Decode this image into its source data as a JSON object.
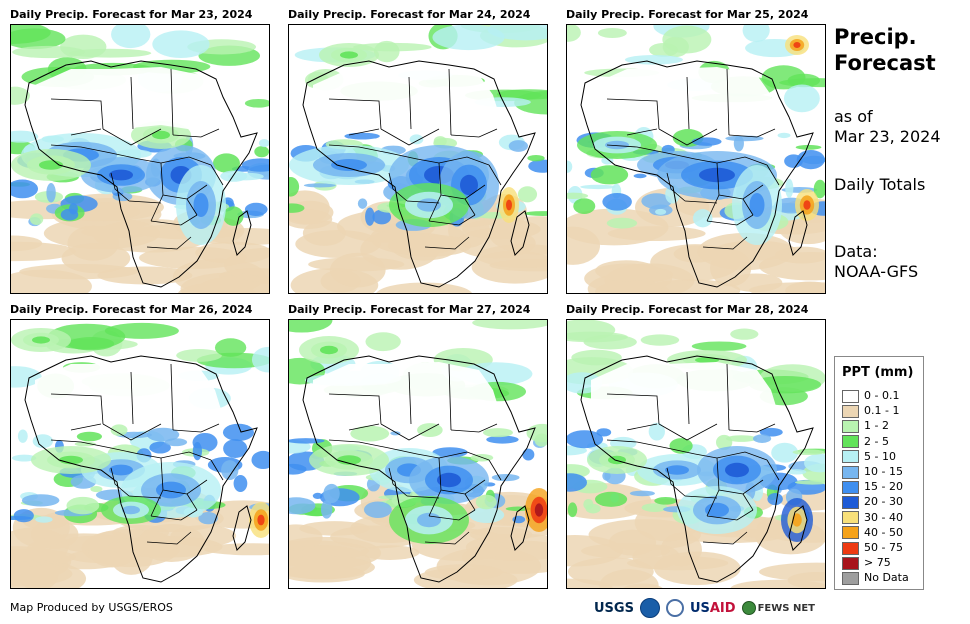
{
  "panels": [
    {
      "title": "Daily Precip. Forecast for Mar 23, 2024"
    },
    {
      "title": "Daily Precip. Forecast for Mar 24, 2024"
    },
    {
      "title": "Daily Precip. Forecast for Mar 25, 2024"
    },
    {
      "title": "Daily Precip. Forecast for Mar 26, 2024"
    },
    {
      "title": "Daily Precip. Forecast for Mar 27, 2024"
    },
    {
      "title": "Daily Precip. Forecast for Mar 28, 2024"
    }
  ],
  "side": {
    "title_line1": "Precip.",
    "title_line2": "Forecast",
    "asof_line1": "as of",
    "asof_line2": "Mar 23, 2024",
    "totals": "Daily Totals",
    "data_line1": "Data:",
    "data_line2": "NOAA-GFS"
  },
  "legend": {
    "title": "PPT (mm)",
    "items": [
      {
        "label": "0 - 0.1",
        "color": "#ffffff"
      },
      {
        "label": "0.1 - 1",
        "color": "#ecd6b4"
      },
      {
        "label": "1 - 2",
        "color": "#b9f3b1"
      },
      {
        "label": "2 - 5",
        "color": "#62e35a"
      },
      {
        "label": "5 - 10",
        "color": "#b7f0f4"
      },
      {
        "label": "10 - 15",
        "color": "#77b6f0"
      },
      {
        "label": "15 - 20",
        "color": "#3f8ff0"
      },
      {
        "label": "20 - 30",
        "color": "#1e5bd6"
      },
      {
        "label": "30 - 40",
        "color": "#f8e07a"
      },
      {
        "label": "40 - 50",
        "color": "#f5a21a"
      },
      {
        "label": "50 - 75",
        "color": "#ee3a12"
      },
      {
        "label": "> 75",
        "color": "#a8141c"
      },
      {
        "label": "No Data",
        "color": "#9e9e9e"
      }
    ]
  },
  "footer": {
    "credit": "Map Produced by USGS/EROS",
    "logo_usgs": "USGS",
    "logo_usaid_a": "US",
    "logo_usaid_b": "AID",
    "logo_fews": "FEWS NET"
  }
}
